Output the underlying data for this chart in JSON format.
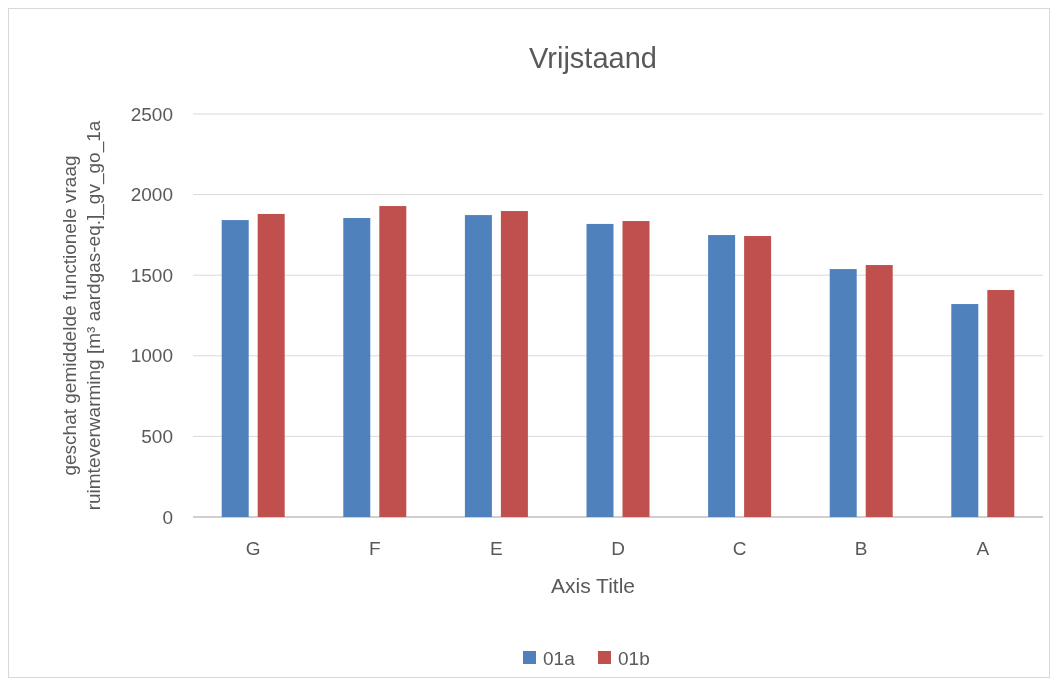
{
  "chart_data": {
    "type": "bar",
    "title": "Vrijstaand",
    "xlabel": "Axis Title",
    "ylabel": "geschat gemiddelde functionele vraag ruimteverwarming [m³ aardgas-eq.]_gv_go_1a",
    "categories": [
      "G",
      "F",
      "E",
      "D",
      "C",
      "B",
      "A"
    ],
    "series": [
      {
        "name": "01a",
        "color": "#4f81bd",
        "values": [
          1842,
          1855,
          1873,
          1818,
          1749,
          1538,
          1321
        ]
      },
      {
        "name": "01b",
        "color": "#c0504d",
        "values": [
          1880,
          1929,
          1898,
          1836,
          1743,
          1563,
          1408
        ]
      }
    ],
    "ylim": [
      0,
      2500
    ],
    "yticks": [
      0,
      500,
      1000,
      1500,
      2000,
      2500
    ],
    "grid": "y",
    "legend": "bottom"
  }
}
